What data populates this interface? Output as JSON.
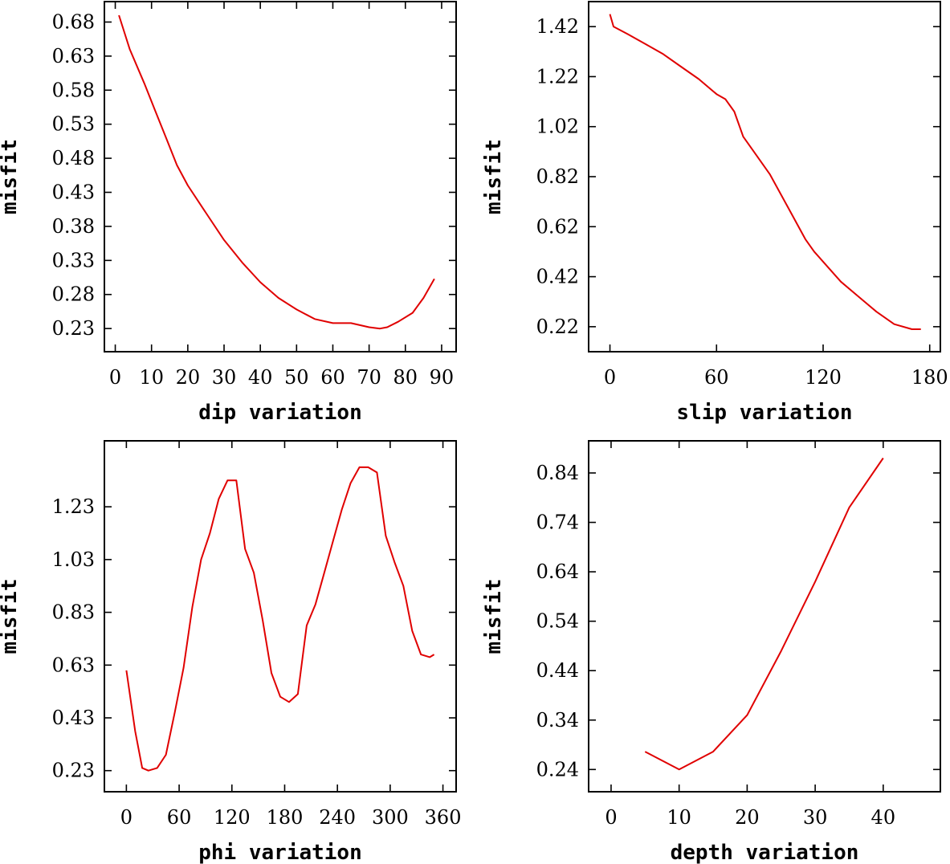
{
  "chart_data": [
    {
      "id": "dip",
      "type": "line",
      "xlabel": "dip     variation",
      "ylabel": "misfit",
      "xlim": [
        -3,
        94
      ],
      "ylim": [
        0.196,
        0.71
      ],
      "xticks": [
        0,
        10,
        20,
        30,
        40,
        50,
        60,
        70,
        80,
        90
      ],
      "xtick_labels": [
        "0",
        "10",
        "20",
        "30",
        "40",
        "50",
        "60",
        "70",
        "80",
        "90"
      ],
      "yticks": [
        0.23,
        0.28,
        0.33,
        0.38,
        0.43,
        0.48,
        0.53,
        0.58,
        0.63,
        0.68
      ],
      "ytick_labels": [
        "0.23",
        "0.28",
        "0.33",
        "0.38",
        "0.43",
        "0.48",
        "0.53",
        "0.58",
        "0.63",
        "0.68"
      ],
      "series": [
        {
          "name": "misfit",
          "color": "#e00000",
          "x": [
            1,
            4,
            8,
            11,
            14,
            17,
            20,
            25,
            30,
            35,
            40,
            45,
            50,
            55,
            60,
            65,
            70,
            73,
            75,
            78,
            82,
            85,
            88
          ],
          "y": [
            0.69,
            0.64,
            0.59,
            0.55,
            0.51,
            0.47,
            0.44,
            0.4,
            0.36,
            0.327,
            0.298,
            0.275,
            0.258,
            0.244,
            0.238,
            0.238,
            0.232,
            0.23,
            0.232,
            0.24,
            0.253,
            0.275,
            0.303
          ]
        }
      ]
    },
    {
      "id": "slip",
      "type": "line",
      "xlabel": "slip   variation",
      "ylabel": "misfit",
      "xlim": [
        -12,
        186
      ],
      "ylim": [
        0.12,
        1.52
      ],
      "xticks": [
        0,
        60,
        120,
        180
      ],
      "xtick_labels": [
        "0",
        "60",
        "120",
        "180"
      ],
      "yticks": [
        0.22,
        0.42,
        0.62,
        0.82,
        1.02,
        1.22,
        1.42
      ],
      "ytick_labels": [
        "0.22",
        "0.42",
        "0.62",
        "0.82",
        "1.02",
        "1.22",
        "1.42"
      ],
      "series": [
        {
          "name": "misfit",
          "color": "#e00000",
          "x": [
            0,
            2,
            10,
            20,
            30,
            40,
            50,
            60,
            65,
            70,
            75,
            80,
            90,
            100,
            110,
            115,
            120,
            130,
            140,
            150,
            160,
            170,
            175
          ],
          "y": [
            1.47,
            1.42,
            1.39,
            1.35,
            1.31,
            1.26,
            1.21,
            1.15,
            1.13,
            1.08,
            0.98,
            0.93,
            0.83,
            0.7,
            0.57,
            0.52,
            0.48,
            0.4,
            0.34,
            0.28,
            0.23,
            0.21,
            0.21
          ]
        }
      ]
    },
    {
      "id": "phi",
      "type": "line",
      "xlabel": "phi     variation",
      "ylabel": "misfit",
      "xlim": [
        -25,
        375
      ],
      "ylim": [
        0.15,
        1.48
      ],
      "xticks": [
        0,
        60,
        120,
        180,
        240,
        300,
        360
      ],
      "xtick_labels": [
        "0",
        "60",
        "120",
        "180",
        "240",
        "300",
        "360"
      ],
      "yticks": [
        0.23,
        0.43,
        0.63,
        0.83,
        1.03,
        1.23
      ],
      "ytick_labels": [
        "0.23",
        "0.43",
        "0.63",
        "0.83",
        "1.03",
        "1.23"
      ],
      "series": [
        {
          "name": "misfit",
          "color": "#e00000",
          "x": [
            0,
            10,
            18,
            25,
            35,
            45,
            55,
            65,
            75,
            85,
            95,
            105,
            115,
            125,
            135,
            145,
            155,
            165,
            175,
            185,
            195,
            205,
            215,
            225,
            235,
            245,
            255,
            265,
            275,
            285,
            295,
            305,
            315,
            325,
            335,
            345,
            350
          ],
          "y": [
            0.61,
            0.38,
            0.24,
            0.23,
            0.24,
            0.29,
            0.45,
            0.62,
            0.85,
            1.03,
            1.13,
            1.26,
            1.33,
            1.33,
            1.07,
            0.98,
            0.8,
            0.6,
            0.51,
            0.49,
            0.52,
            0.78,
            0.86,
            0.98,
            1.1,
            1.22,
            1.32,
            1.38,
            1.38,
            1.36,
            1.12,
            1.02,
            0.93,
            0.76,
            0.67,
            0.66,
            0.67
          ]
        }
      ]
    },
    {
      "id": "depth",
      "type": "line",
      "xlabel": "depth  variation",
      "ylabel": "misfit",
      "xlim": [
        -3.3,
        48.4
      ],
      "ylim": [
        0.195,
        0.905
      ],
      "xticks": [
        0,
        10,
        20,
        30,
        40
      ],
      "xtick_labels": [
        "0",
        "10",
        "20",
        "30",
        "40"
      ],
      "yticks": [
        0.24,
        0.34,
        0.44,
        0.54,
        0.64,
        0.74,
        0.84
      ],
      "ytick_labels": [
        "0.24",
        "0.34",
        "0.44",
        "0.54",
        "0.64",
        "0.74",
        "0.84"
      ],
      "series": [
        {
          "name": "misfit",
          "color": "#e00000",
          "x": [
            5,
            10,
            15,
            20,
            25,
            30,
            35,
            40
          ],
          "y": [
            0.276,
            0.24,
            0.276,
            0.35,
            0.48,
            0.62,
            0.77,
            0.87
          ]
        }
      ]
    }
  ]
}
